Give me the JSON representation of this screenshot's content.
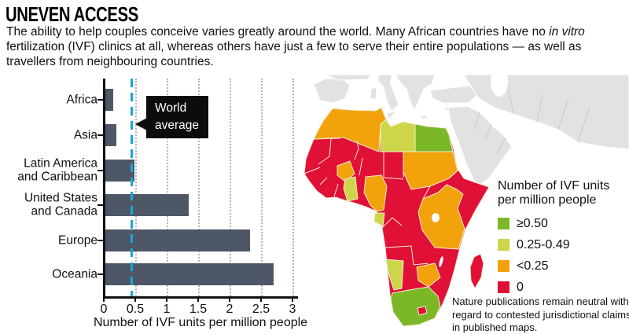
{
  "header": {
    "title": "UNEVEN ACCESS",
    "subtitle_parts": [
      {
        "text": "The ability to help couples conceive varies greatly around the world. Many African countries have no ",
        "italic": false
      },
      {
        "text": "in vitro",
        "italic": true
      },
      {
        "text": " fertilization (IVF) clinics at all, whereas others have just a few to serve their entire populations — as well as travellers from neighbouring countries.",
        "italic": false
      }
    ]
  },
  "chart_data": {
    "type": "bar",
    "orientation": "horizontal",
    "title": "",
    "categories": [
      "Africa",
      "Asia",
      "Latin America and Caribbean",
      "United States and Canada",
      "Europe",
      "Oceania"
    ],
    "category_labels": [
      "Africa",
      "Asia",
      "Latin America\nand Caribbean",
      "United States\nand Canada",
      "Europe",
      "Oceania"
    ],
    "values": [
      0.12,
      0.18,
      0.46,
      1.33,
      2.3,
      2.68
    ],
    "world_average": 0.44,
    "world_average_label": "World\naverage",
    "xlabel": "Number of IVF units per million people",
    "xticks": [
      0,
      0.5,
      1,
      1.5,
      2,
      2.5,
      3
    ],
    "xtick_labels": [
      "0",
      "0.5",
      "1",
      "1.5",
      "2",
      "2.5",
      "3"
    ],
    "xlim": [
      0,
      3
    ],
    "grid": "dotted vertical",
    "bar_color": "#4d5766",
    "average_line_color": "#1ba5dc",
    "axis_color": "#111111"
  },
  "map": {
    "legend": {
      "title_lines": [
        "Number of IVF units",
        "per million people"
      ],
      "items": [
        {
          "category": "high",
          "label": "≥0.50",
          "color": "#7cb728"
        },
        {
          "category": "mid",
          "label": "0.25-0.49",
          "color": "#cdd649"
        },
        {
          "category": "low",
          "label": "<0.25",
          "color": "#f2a20a"
        },
        {
          "category": "zero",
          "label": "0",
          "color": "#e01037"
        }
      ]
    },
    "colors": {
      "land_other": "#e2e2e2",
      "land_border": "#c9c9c9",
      "africa_border": "#f6edd2",
      "sea": "#ffffff"
    },
    "regions": [
      {
        "name": "Morocco",
        "category": "low"
      },
      {
        "name": "Algeria",
        "category": "low"
      },
      {
        "name": "Tunisia",
        "category": "low"
      },
      {
        "name": "Libya",
        "category": "mid"
      },
      {
        "name": "Egypt",
        "category": "high"
      },
      {
        "name": "Western Sahara",
        "category": "zero"
      },
      {
        "name": "Mauritania",
        "category": "zero"
      },
      {
        "name": "Mali",
        "category": "zero"
      },
      {
        "name": "Niger",
        "category": "zero"
      },
      {
        "name": "Chad",
        "category": "zero"
      },
      {
        "name": "Sudan",
        "category": "low"
      },
      {
        "name": "Eritrea",
        "category": "zero"
      },
      {
        "name": "Ethiopia",
        "category": "low"
      },
      {
        "name": "Somalia",
        "category": "zero"
      },
      {
        "name": "Senegal",
        "category": "zero"
      },
      {
        "name": "Guinea",
        "category": "zero"
      },
      {
        "name": "Sierra Leone",
        "category": "zero"
      },
      {
        "name": "Liberia",
        "category": "zero"
      },
      {
        "name": "Côte d'Ivoire",
        "category": "zero"
      },
      {
        "name": "Burkina Faso",
        "category": "low"
      },
      {
        "name": "Ghana",
        "category": "mid"
      },
      {
        "name": "Togo",
        "category": "zero"
      },
      {
        "name": "Benin",
        "category": "zero"
      },
      {
        "name": "Nigeria",
        "category": "low"
      },
      {
        "name": "Cameroon",
        "category": "low"
      },
      {
        "name": "Central African Republic",
        "category": "zero"
      },
      {
        "name": "South Sudan",
        "category": "zero"
      },
      {
        "name": "Gabon",
        "category": "mid"
      },
      {
        "name": "Congo",
        "category": "zero"
      },
      {
        "name": "DR Congo",
        "category": "zero"
      },
      {
        "name": "Uganda",
        "category": "low"
      },
      {
        "name": "Kenya",
        "category": "low"
      },
      {
        "name": "Tanzania",
        "category": "low"
      },
      {
        "name": "Angola",
        "category": "zero"
      },
      {
        "name": "Zambia",
        "category": "zero"
      },
      {
        "name": "Malawi",
        "category": "zero"
      },
      {
        "name": "Mozambique",
        "category": "zero"
      },
      {
        "name": "Zimbabwe",
        "category": "low"
      },
      {
        "name": "Botswana",
        "category": "zero"
      },
      {
        "name": "Namibia",
        "category": "mid"
      },
      {
        "name": "South Africa",
        "category": "high"
      },
      {
        "name": "Lesotho",
        "category": "zero"
      },
      {
        "name": "Madagascar",
        "category": "zero"
      }
    ],
    "footnote": "Nature publications remain neutral with regard to contested jurisdictional claims in published maps."
  }
}
